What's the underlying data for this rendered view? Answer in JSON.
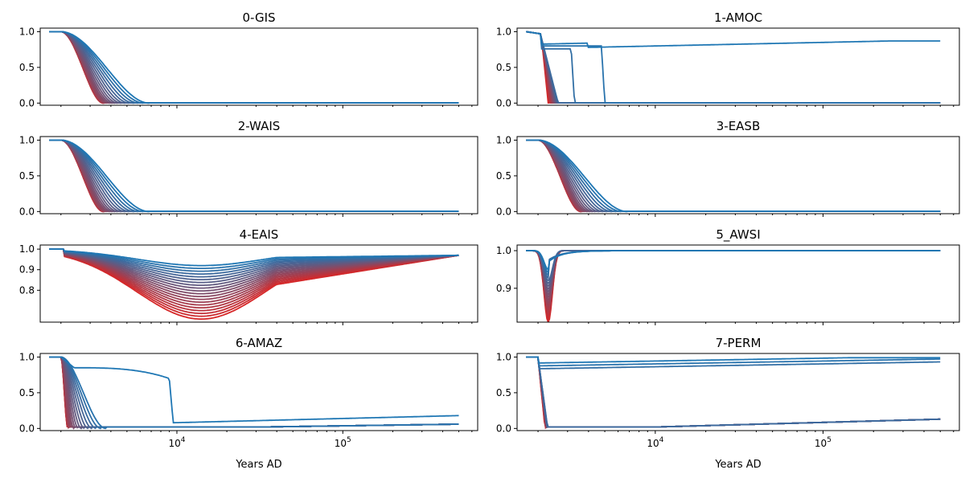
{
  "chart_data": [
    {
      "type": "line",
      "title": "0-GIS",
      "kind": "collapse",
      "ylim": [
        -0.03,
        1.05
      ],
      "yticks": [
        0.0,
        0.5,
        1.0
      ],
      "ytick_labels": [
        "0.0",
        "0.5",
        "1.0"
      ]
    },
    {
      "type": "line",
      "title": "1-AMOC",
      "kind": "amoc",
      "ylim": [
        -0.03,
        1.05
      ],
      "yticks": [
        0.0,
        0.5,
        1.0
      ],
      "ytick_labels": [
        "0.0",
        "0.5",
        "1.0"
      ]
    },
    {
      "type": "line",
      "title": "2-WAIS",
      "kind": "collapse",
      "ylim": [
        -0.03,
        1.05
      ],
      "yticks": [
        0.0,
        0.5,
        1.0
      ],
      "ytick_labels": [
        "0.0",
        "0.5",
        "1.0"
      ]
    },
    {
      "type": "line",
      "title": "3-EASB",
      "kind": "collapse",
      "ylim": [
        -0.03,
        1.05
      ],
      "yticks": [
        0.0,
        0.5,
        1.0
      ],
      "ytick_labels": [
        "0.0",
        "0.5",
        "1.0"
      ]
    },
    {
      "type": "line",
      "title": "4-EAIS",
      "kind": "eais",
      "ylim": [
        0.645,
        1.02
      ],
      "yticks": [
        0.8,
        0.9,
        1.0
      ],
      "ytick_labels": [
        "0.8",
        "0.9",
        "1.0"
      ]
    },
    {
      "type": "line",
      "title": "5_AWSI",
      "kind": "awsi",
      "ylim": [
        0.81,
        1.015
      ],
      "yticks": [
        0.9,
        1.0
      ],
      "ytick_labels": [
        "0.9",
        "1.0"
      ]
    },
    {
      "type": "line",
      "title": "6-AMAZ",
      "kind": "amaz",
      "ylim": [
        -0.03,
        1.05
      ],
      "yticks": [
        0.0,
        0.5,
        1.0
      ],
      "ytick_labels": [
        "0.0",
        "0.5",
        "1.0"
      ]
    },
    {
      "type": "line",
      "title": "7-PERM",
      "kind": "perm",
      "ylim": [
        -0.03,
        1.05
      ],
      "yticks": [
        0.0,
        0.5,
        1.0
      ],
      "ytick_labels": [
        "0.0",
        "0.5",
        "1.0"
      ]
    }
  ],
  "x_axis": {
    "scale": "log",
    "xlim": [
      1500,
      650000
    ],
    "major_ticks": [
      10000,
      100000
    ],
    "major_tick_labels": [
      {
        "base": "10",
        "exp": "4"
      },
      {
        "base": "10",
        "exp": "5"
      }
    ],
    "label": "Years AD"
  },
  "series_colors": {
    "first": "#1f77b4",
    "last": "#d62728",
    "mid": "#5f3e5e"
  }
}
